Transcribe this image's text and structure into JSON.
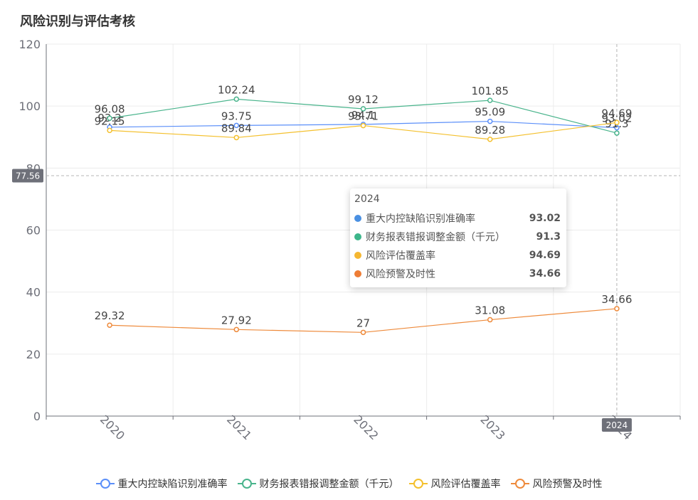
{
  "chart_data": {
    "type": "line",
    "title": "风险识别与评估考核",
    "categories": [
      "2020",
      "2021",
      "2022",
      "2023",
      "2024"
    ],
    "ylim": [
      0,
      120
    ],
    "yticks": [
      0,
      20,
      40,
      60,
      80,
      100,
      120
    ],
    "series": [
      {
        "name": "重大内控缺陷识别准确率",
        "color": "#5b8ff9",
        "values": [
          93.2,
          93.75,
          94.1,
          95.09,
          93.02
        ],
        "labels": [
          "93.2",
          "93.75",
          "94.1",
          "95.09",
          "93.02"
        ]
      },
      {
        "name": "财务报表错报调整金额（千元）",
        "color": "#49b48c",
        "values": [
          96.08,
          102.24,
          99.12,
          101.85,
          91.3
        ],
        "labels": [
          "96.08",
          "102.24",
          "99.12",
          "101.85",
          "91.3"
        ]
      },
      {
        "name": "风险评估覆盖率",
        "color": "#f4c02d",
        "values": [
          92.15,
          89.84,
          93.71,
          89.28,
          94.69
        ],
        "labels": [
          "92.15",
          "89.84",
          "93.71",
          "89.28",
          "94.69"
        ]
      },
      {
        "name": "风险预警及时性",
        "color": "#ee8a3b",
        "values": [
          29.32,
          27.92,
          27,
          31.08,
          34.66
        ],
        "labels": [
          "29.32",
          "27.92",
          "27",
          "31.08",
          "34.66"
        ]
      }
    ],
    "crosshair": {
      "x_label": "2024",
      "y_label": "77.56",
      "y_value": 77.56
    },
    "tooltip": {
      "title": "2024",
      "rows": [
        {
          "name": "重大内控缺陷识别准确率",
          "value": "93.02",
          "color": "#4a90e2"
        },
        {
          "name": "财务报表错报调整金额（千元）",
          "value": "91.3",
          "color": "#3db68b"
        },
        {
          "name": "风险评估覆盖率",
          "value": "94.69",
          "color": "#f5b731"
        },
        {
          "name": "风险预警及时性",
          "value": "34.66",
          "color": "#ee7d35"
        }
      ]
    },
    "legend": [
      "重大内控缺陷识别准确率",
      "财务报表错报调整金额（千元）",
      "风险评估覆盖率",
      "风险预警及时性"
    ]
  }
}
